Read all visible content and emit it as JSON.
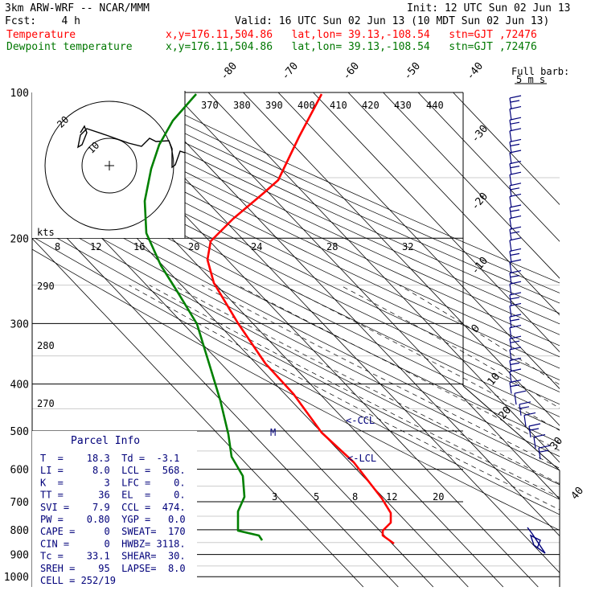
{
  "header": {
    "title_left": "3km ARW-WRF -- NCAR/MMM",
    "init": "Init: 12 UTC Sun 02 Jun 13",
    "fcst": "Fcst:    4 h",
    "valid": "Valid: 16 UTC Sun 02 Jun 13 (10 MDT Sun 02 Jun 13)",
    "temp_label": "Temperature",
    "temp_info": "x,y=176.11,504.86   lat,lon= 39.13,-108.54   stn=GJT ,72476",
    "dew_label": "Dewpoint temperature",
    "dew_info": "x,y=176.11,504.86   lat,lon= 39.13,-108.54   stn=GJT ,72476"
  },
  "colors": {
    "temperature": "#ff0000",
    "dewpoint": "#007700",
    "parcel_text": "#00007a",
    "wind": "#00007a"
  },
  "barb_key": {
    "line1": "Full barb:",
    "line2": "5 m s"
  },
  "theta_labels": [
    "370",
    "380",
    "390",
    "400",
    "410",
    "420",
    "430",
    "440"
  ],
  "mixing_ratio_labels_top": [
    "8",
    "12",
    "16",
    "20",
    "24",
    "28",
    "32"
  ],
  "mixing_ratio_labels_bottom": [
    "3",
    "5",
    "8",
    "12",
    "20"
  ],
  "dry_adiabat_labels": [
    "290",
    "280",
    "270"
  ],
  "isotherm_labels": [
    "-80",
    "-70",
    "-60",
    "-50",
    "-40",
    "-30",
    "-20",
    "-10",
    "0",
    "10",
    "20",
    "30",
    "40"
  ],
  "hodograph": {
    "kts_label": "kts",
    "ring_labels": [
      "20",
      "10"
    ]
  },
  "annotations": {
    "ccl": "<-CCL",
    "lcl": "<-LCL",
    "m": "M"
  },
  "parcel_info": {
    "title": "Parcel Info",
    "rows": [
      "T  =    18.3  Td =  -3.1",
      "LI =     8.0  LCL =  568.",
      "K  =       3  LFC =    0.",
      "TT =      36  EL  =    0.",
      "SVI =    7.9  CCL =  474.",
      "PW =    0.80  YGP =   0.0",
      "CAPE =     0  SWEAT=  170",
      "CIN =      0  HWBZ= 3118.",
      "Tc =    33.1  SHEAR=  30.",
      "SREH =    95  LAPSE=  8.0",
      "CELL = 252/19"
    ]
  },
  "chart_data": {
    "type": "skew-t",
    "pressure_levels_hpa": [
      100,
      200,
      300,
      400,
      500,
      600,
      700,
      800,
      900,
      1000
    ],
    "series": [
      {
        "name": "Temperature",
        "points": [
          [
            100,
            -48
          ],
          [
            150,
            -50
          ],
          [
            175,
            -55
          ],
          [
            200,
            -59
          ],
          [
            250,
            -50
          ],
          [
            300,
            -40
          ],
          [
            400,
            -23
          ],
          [
            500,
            -11
          ],
          [
            600,
            0
          ],
          [
            700,
            8
          ],
          [
            750,
            12
          ],
          [
            800,
            13
          ],
          [
            850,
            17
          ]
        ]
      },
      {
        "name": "Dewpoint temperature",
        "points": [
          [
            100,
            -82
          ],
          [
            150,
            -83
          ],
          [
            175,
            -80
          ],
          [
            200,
            -73
          ],
          [
            250,
            -55
          ],
          [
            300,
            -45
          ],
          [
            400,
            -35
          ],
          [
            500,
            -25
          ],
          [
            600,
            -16
          ],
          [
            700,
            -11
          ],
          [
            800,
            -10
          ],
          [
            850,
            -3
          ]
        ]
      }
    ]
  }
}
